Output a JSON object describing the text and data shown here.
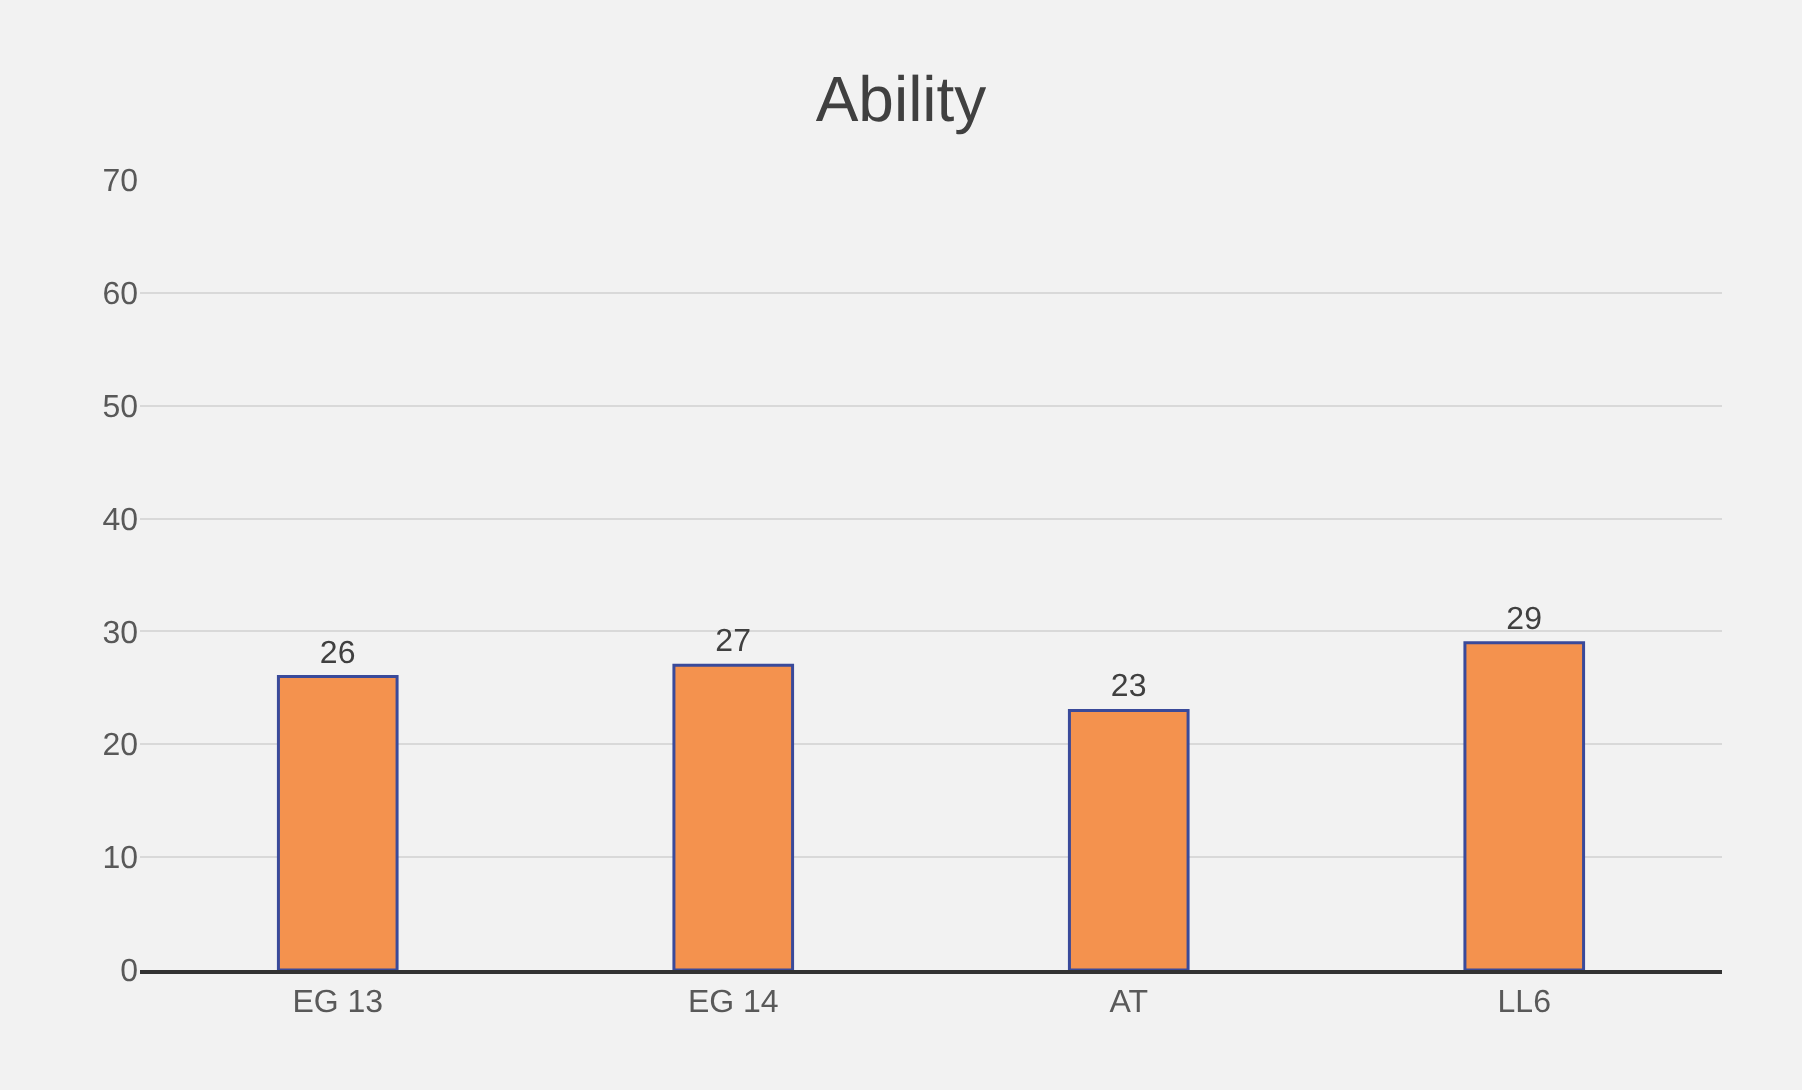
{
  "chart_data": {
    "type": "bar",
    "title": "Ability",
    "categories": [
      "EG 13",
      "EG 14",
      "AT",
      "LL6"
    ],
    "values": [
      26,
      27,
      23,
      29
    ],
    "color": "#f4924e",
    "ylim": [
      0,
      70
    ],
    "yticks": [
      0,
      10,
      20,
      30,
      40,
      50,
      60,
      70
    ],
    "grid": "y",
    "data_labels": true
  }
}
